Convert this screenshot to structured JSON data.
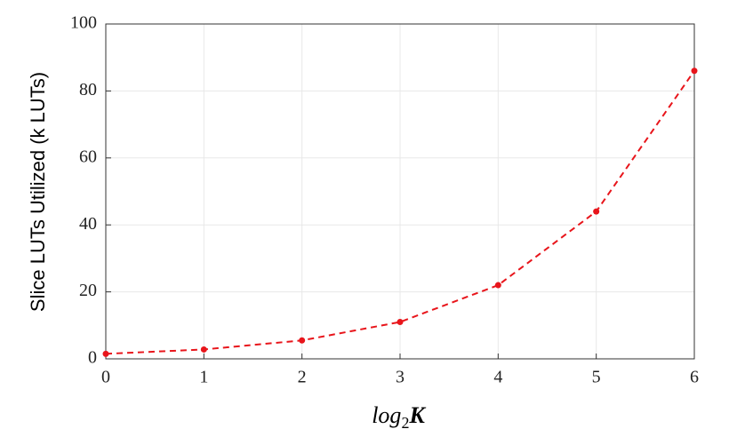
{
  "chart_data": {
    "type": "line",
    "xlabel": [
      "log",
      "2",
      "K"
    ],
    "ylabel": "Slice LUTs Utilized (k LUTs)",
    "x": [
      0,
      1,
      2,
      3,
      4,
      5,
      6
    ],
    "series": [
      {
        "color": "#e8151b",
        "values": [
          1.5,
          2.8,
          5.5,
          11,
          22,
          44,
          86
        ]
      }
    ],
    "xlim": [
      0,
      6
    ],
    "xticks": [
      0,
      1,
      2,
      3,
      4,
      5,
      6
    ],
    "ylim": [
      0,
      100
    ],
    "yticks": [
      0,
      20,
      40,
      60,
      80,
      100
    ],
    "grid": true,
    "line_style": "dashed"
  }
}
